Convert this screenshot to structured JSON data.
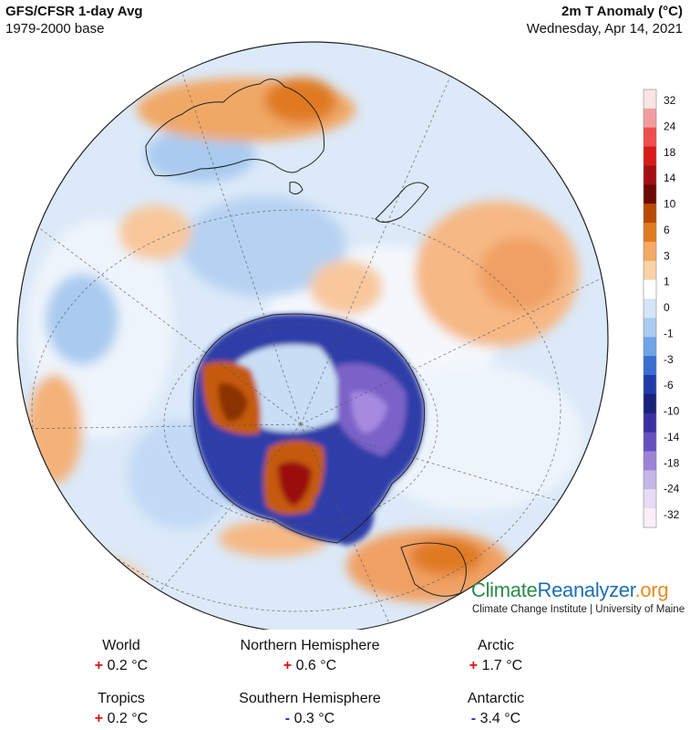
{
  "header": {
    "title": "GFS/CFSR 1-day Avg",
    "base": "1979-2000 base",
    "variable": "2m T Anomaly (°C)",
    "date": "Wednesday, Apr 14, 2021"
  },
  "legend": {
    "ticks": [
      "32",
      "24",
      "18",
      "14",
      "10",
      "6",
      "3",
      "1",
      "0",
      "-1",
      "-3",
      "-6",
      "-10",
      "-14",
      "-18",
      "-24",
      "-32"
    ],
    "colors": [
      "#fbe4e4",
      "#f29d9d",
      "#ef4d4d",
      "#d81a1a",
      "#a50f0f",
      "#6e0a04",
      "#b84a05",
      "#e07a20",
      "#f4a964",
      "#fbd2a6",
      "#ffffff",
      "#d5e6f7",
      "#a9cbf0",
      "#6fa4e6",
      "#3a6ed0",
      "#1f3aa8",
      "#18227a",
      "#3a2ea0",
      "#6550c0",
      "#9b84d6",
      "#c5b6e8",
      "#e6dcf5",
      "#fbeef8"
    ]
  },
  "brand": {
    "part1": "Climate",
    "part2": "Reanalyzer",
    "part3": ".org",
    "subtitle": "Climate Change Institute | University of Maine"
  },
  "stats": {
    "world": {
      "label": "World",
      "sign": "+",
      "value": "0.2 °C"
    },
    "nh": {
      "label": "Northern Hemisphere",
      "sign": "+",
      "value": "0.6 °C"
    },
    "arctic": {
      "label": "Arctic",
      "sign": "+",
      "value": "1.7 °C"
    },
    "tropics": {
      "label": "Tropics",
      "sign": "+",
      "value": "0.2 °C"
    },
    "sh": {
      "label": "Southern Hemisphere",
      "sign": "-",
      "value": "0.3 °C"
    },
    "antarctic": {
      "label": "Antarctic",
      "sign": "-",
      "value": "3.4 °C"
    }
  }
}
